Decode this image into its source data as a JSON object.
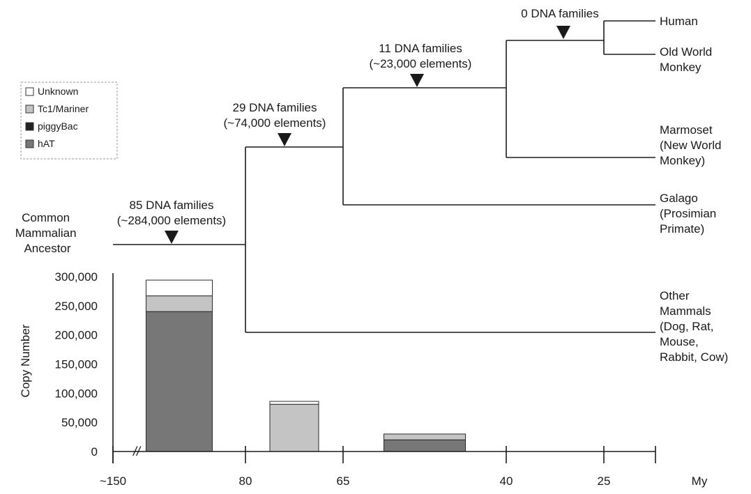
{
  "chart_data": {
    "type": "bar",
    "stacked": true,
    "ylabel": "Copy Number",
    "xlabel": "My",
    "ylim": [
      0,
      300000
    ],
    "y_ticks": [
      0,
      50000,
      100000,
      150000,
      200000,
      250000,
      300000
    ],
    "y_tick_labels": [
      "0",
      "50,000",
      "100,000",
      "150,000",
      "200,000",
      "250,000",
      "300,000"
    ],
    "x_ticks": [
      {
        "value": -150,
        "label": "~150"
      },
      {
        "value": -80,
        "label": "80"
      },
      {
        "value": -65,
        "label": "65"
      },
      {
        "value": -40,
        "label": "40"
      },
      {
        "value": -25,
        "label": "25"
      },
      {
        "value": null,
        "label": "My"
      }
    ],
    "axis_break_label": "//",
    "legend": [
      {
        "name": "Unknown",
        "color": "#ffffff"
      },
      {
        "name": "Tc1/Mariner",
        "color": "#c4c4c4"
      },
      {
        "name": "piggyBac",
        "color": "#222222"
      },
      {
        "name": "hAT",
        "color": "#777777"
      }
    ],
    "bars": [
      {
        "from": -150,
        "to": -80,
        "segments": [
          {
            "series": "hAT",
            "value": 240000
          },
          {
            "series": "Tc1/Mariner",
            "value": 27000
          },
          {
            "series": "Unknown",
            "value": 27000
          }
        ]
      },
      {
        "from": -80,
        "to": -65,
        "segments": [
          {
            "series": "Tc1/Mariner",
            "value": 81000
          },
          {
            "series": "Unknown",
            "value": 5000
          }
        ]
      },
      {
        "from": -65,
        "to": -40,
        "segments": [
          {
            "series": "hAT",
            "value": 20000
          },
          {
            "series": "Tc1/Mariner",
            "value": 10000
          }
        ]
      }
    ],
    "tree": {
      "root_label": "Common Mammalian Ancestor",
      "branch_annotations": [
        {
          "line1": "85 DNA families",
          "line2": "(~284,000 elements)"
        },
        {
          "line1": "29 DNA families",
          "line2": "(~74,000 elements)"
        },
        {
          "line1": "11 DNA families",
          "line2": "(~23,000 elements)"
        },
        {
          "line1": "0 DNA families",
          "line2": ""
        }
      ],
      "leaves": [
        {
          "lines": [
            "Human"
          ]
        },
        {
          "lines": [
            "Old World",
            "Monkey"
          ]
        },
        {
          "lines": [
            "Marmoset",
            "(New World",
            "Monkey)"
          ]
        },
        {
          "lines": [
            "Galago",
            "(Prosimian",
            "Primate)"
          ]
        },
        {
          "lines": [
            "Other",
            "Mammals",
            "(Dog, Rat,",
            "Mouse,",
            "Rabbit, Cow)"
          ]
        }
      ]
    }
  }
}
